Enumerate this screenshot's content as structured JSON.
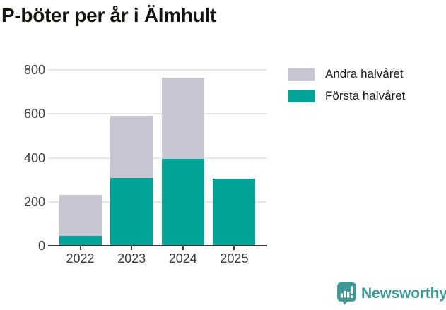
{
  "title": "P-böter per år i Älmhult",
  "chart_data": {
    "type": "bar",
    "stacked": true,
    "title": "P-böter per år i Älmhult",
    "categories": [
      "2022",
      "2023",
      "2024",
      "2025"
    ],
    "series": [
      {
        "name": "Första halvåret",
        "color": "#00a398",
        "values": [
          45,
          310,
          395,
          305
        ]
      },
      {
        "name": "Andra halvåret",
        "color": "#c7c5d1",
        "values": [
          185,
          280,
          370,
          0
        ]
      }
    ],
    "stack_totals": [
      230,
      590,
      765,
      305
    ],
    "ylim": [
      0,
      800
    ],
    "yticks": [
      0,
      200,
      400,
      600,
      800
    ],
    "xlabel": "",
    "ylabel": "",
    "grid": true,
    "legend_position": "top-right"
  },
  "legend": {
    "items": [
      {
        "label": "Andra halvåret",
        "color": "#c7c5d1"
      },
      {
        "label": "Första halvåret",
        "color": "#00a398"
      }
    ]
  },
  "footer": {
    "brand": "Newsworthy",
    "brand_color": "#3e9896",
    "icon": "newsworthy-bar-chart-speech-bubble-icon"
  },
  "colors": {
    "background": "#ffffff",
    "title_text": "#14140f",
    "axis_line": "#3a3a3a",
    "tick_text": "#3c3c3c",
    "gridline": "#e7e7e7"
  }
}
